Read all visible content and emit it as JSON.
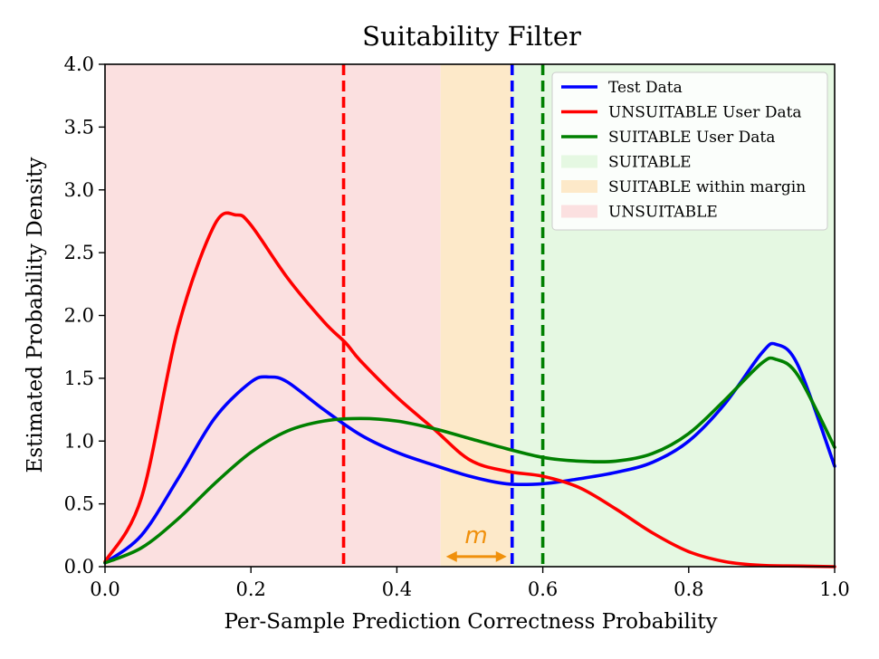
{
  "chart_data": {
    "type": "line",
    "title": "Suitability Filter",
    "xlabel": "Per-Sample Prediction Correctness Probability",
    "ylabel": "Estimated Probability Density",
    "xlim": [
      0.0,
      1.0
    ],
    "ylim": [
      0.0,
      4.0
    ],
    "xticks": [
      0.0,
      0.2,
      0.4,
      0.6,
      0.8,
      1.0
    ],
    "xtick_labels": [
      "0.0",
      "0.2",
      "0.4",
      "0.6",
      "0.8",
      "1.0"
    ],
    "yticks": [
      0.0,
      0.5,
      1.0,
      1.5,
      2.0,
      2.5,
      3.0,
      3.5,
      4.0
    ],
    "ytick_labels": [
      "0.0",
      "0.5",
      "1.0",
      "1.5",
      "2.0",
      "2.5",
      "3.0",
      "3.5",
      "4.0"
    ],
    "grid": false,
    "legend_position": "top-right",
    "regions": [
      {
        "name": "UNSUITABLE",
        "x_range": [
          0.0,
          0.46
        ],
        "color": "#fbe0e0"
      },
      {
        "name": "SUITABLE within margin",
        "x_range": [
          0.46,
          0.558
        ],
        "color": "#fde9c9"
      },
      {
        "name": "SUITABLE",
        "x_range": [
          0.558,
          1.0
        ],
        "color": "#e5f8e2"
      }
    ],
    "vlines": [
      {
        "series": "UNSUITABLE User Data",
        "x": 0.327,
        "color": "#ff0000"
      },
      {
        "series": "Test Data",
        "x": 0.558,
        "color": "#0000ff"
      },
      {
        "series": "SUITABLE User Data",
        "x": 0.6,
        "color": "#008000"
      }
    ],
    "series": [
      {
        "name": "Test Data",
        "color": "#0000ff",
        "x": [
          0.0,
          0.05,
          0.1,
          0.15,
          0.2,
          0.225,
          0.25,
          0.3,
          0.35,
          0.4,
          0.45,
          0.5,
          0.55,
          0.6,
          0.65,
          0.7,
          0.75,
          0.8,
          0.85,
          0.9,
          0.92,
          0.95,
          1.0
        ],
        "y": [
          0.03,
          0.25,
          0.7,
          1.18,
          1.47,
          1.51,
          1.47,
          1.25,
          1.05,
          0.91,
          0.81,
          0.72,
          0.66,
          0.66,
          0.7,
          0.75,
          0.83,
          1.0,
          1.3,
          1.7,
          1.77,
          1.6,
          0.8
        ]
      },
      {
        "name": "UNSUITABLE User Data",
        "color": "#ff0000",
        "x": [
          0.0,
          0.05,
          0.1,
          0.15,
          0.18,
          0.2,
          0.25,
          0.3,
          0.33,
          0.35,
          0.4,
          0.45,
          0.5,
          0.55,
          0.6,
          0.65,
          0.7,
          0.75,
          0.8,
          0.85,
          0.9,
          0.95,
          1.0
        ],
        "y": [
          0.04,
          0.55,
          1.9,
          2.72,
          2.8,
          2.72,
          2.3,
          1.95,
          1.78,
          1.64,
          1.35,
          1.1,
          0.85,
          0.76,
          0.72,
          0.63,
          0.46,
          0.27,
          0.12,
          0.04,
          0.01,
          0.005,
          0.0
        ]
      },
      {
        "name": "SUITABLE User Data",
        "color": "#008000",
        "x": [
          0.0,
          0.05,
          0.1,
          0.15,
          0.2,
          0.25,
          0.3,
          0.35,
          0.4,
          0.45,
          0.5,
          0.55,
          0.6,
          0.65,
          0.7,
          0.75,
          0.8,
          0.85,
          0.9,
          0.92,
          0.95,
          1.0
        ],
        "y": [
          0.03,
          0.15,
          0.38,
          0.66,
          0.91,
          1.08,
          1.16,
          1.18,
          1.16,
          1.1,
          1.02,
          0.94,
          0.87,
          0.84,
          0.84,
          0.9,
          1.06,
          1.33,
          1.62,
          1.65,
          1.52,
          0.95
        ]
      }
    ],
    "annotations": [
      {
        "text": "m",
        "x": 0.508,
        "y": 0.25,
        "color": "#f0900c",
        "arrow_x_range": [
          0.46,
          0.558
        ],
        "arrow_y": 0.08
      }
    ],
    "legend": [
      {
        "label": "Test Data",
        "kind": "line",
        "color": "#0000ff"
      },
      {
        "label": "UNSUITABLE User Data",
        "kind": "line",
        "color": "#ff0000"
      },
      {
        "label": "SUITABLE User Data",
        "kind": "line",
        "color": "#008000"
      },
      {
        "label": "SUITABLE",
        "kind": "patch",
        "color": "#e5f8e2"
      },
      {
        "label": "SUITABLE within margin",
        "kind": "patch",
        "color": "#fde9c9"
      },
      {
        "label": "UNSUITABLE",
        "kind": "patch",
        "color": "#fbe0e0"
      }
    ]
  }
}
